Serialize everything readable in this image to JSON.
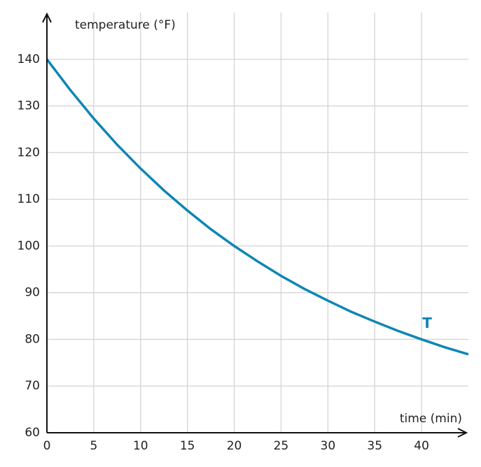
{
  "chart_data": {
    "type": "line",
    "x_label": "time (min)",
    "y_label": "temperature (°F)",
    "x": [
      0,
      2.5,
      5,
      7.5,
      10,
      12.5,
      15,
      17.5,
      20,
      22.5,
      25,
      27.5,
      30,
      32.5,
      35,
      37.5,
      40,
      42.5,
      45
    ],
    "series": [
      {
        "name": "T",
        "color": "#0e86b5",
        "values": [
          140,
          133.4,
          127.3,
          121.7,
          116.6,
          111.9,
          107.6,
          103.6,
          100,
          96.7,
          93.6,
          90.8,
          88.3,
          85.9,
          83.8,
          81.8,
          80,
          78.3,
          76.8
        ]
      }
    ],
    "xlim": [
      0,
      45
    ],
    "ylim": [
      60,
      150
    ],
    "xticks": [
      0,
      5,
      10,
      15,
      20,
      25,
      30,
      35,
      40
    ],
    "yticks": [
      60,
      70,
      80,
      90,
      100,
      110,
      120,
      130,
      140
    ],
    "grid": true
  }
}
